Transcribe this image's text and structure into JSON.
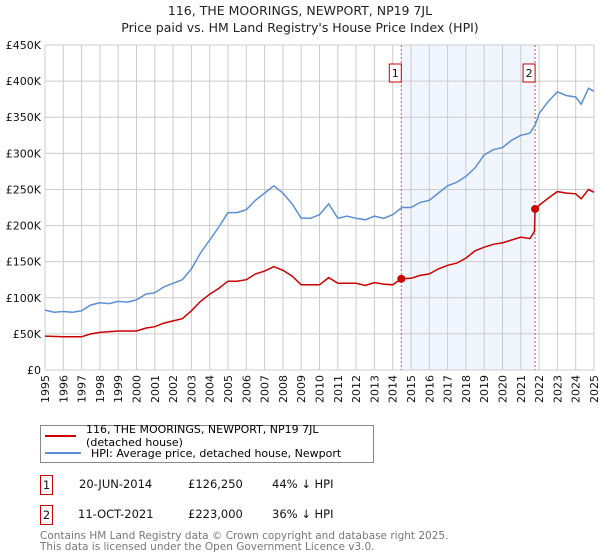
{
  "chart_data": {
    "type": "line",
    "title": "116, THE MOORINGS, NEWPORT, NP19 7JL",
    "subtitle": "Price paid vs. HM Land Registry's House Price Index (HPI)",
    "xlim": [
      1995,
      2025
    ],
    "ylim": [
      0,
      450000
    ],
    "x_ticks": [
      "1995",
      "1996",
      "1997",
      "1998",
      "1999",
      "2000",
      "2001",
      "2002",
      "2003",
      "2004",
      "2005",
      "2006",
      "2007",
      "2008",
      "2009",
      "2010",
      "2011",
      "2012",
      "2013",
      "2014",
      "2015",
      "2016",
      "2017",
      "2018",
      "2019",
      "2020",
      "2021",
      "2022",
      "2023",
      "2024",
      "2025"
    ],
    "y_ticks": [
      {
        "v": 0,
        "label": "£0"
      },
      {
        "v": 50000,
        "label": "£50K"
      },
      {
        "v": 100000,
        "label": "£100K"
      },
      {
        "v": 150000,
        "label": "£150K"
      },
      {
        "v": 200000,
        "label": "£200K"
      },
      {
        "v": 250000,
        "label": "£250K"
      },
      {
        "v": 300000,
        "label": "£300K"
      },
      {
        "v": 350000,
        "label": "£350K"
      },
      {
        "v": 400000,
        "label": "£400K"
      },
      {
        "v": 450000,
        "label": "£450K"
      }
    ],
    "grid": true,
    "shaded_range": [
      2014.47,
      2021.78
    ],
    "series": [
      {
        "name": "116, THE MOORINGS, NEWPORT, NP19 7JL (detached house)",
        "color": "#cc0000",
        "x": [
          1995,
          1996,
          1997,
          1997.5,
          1998,
          1999,
          2000,
          2000.5,
          2001,
          2001.5,
          2002,
          2002.5,
          2003,
          2003.5,
          2004,
          2004.5,
          2005,
          2005.5,
          2006,
          2006.5,
          2007,
          2007.5,
          2008,
          2008.5,
          2009,
          2009.5,
          2010,
          2010.5,
          2011,
          2011.5,
          2012,
          2012.5,
          2013,
          2013.5,
          2014,
          2014.47,
          2015,
          2015.5,
          2016,
          2016.5,
          2017,
          2017.5,
          2018,
          2018.5,
          2019,
          2019.5,
          2020,
          2020.5,
          2021,
          2021.5,
          2021.75,
          2021.78,
          2022,
          2022.5,
          2023,
          2023.5,
          2024,
          2024.3,
          2024.7,
          2025
        ],
        "y": [
          47000,
          46000,
          46000,
          50000,
          52000,
          54000,
          54000,
          58000,
          60000,
          65000,
          68000,
          71000,
          82000,
          95000,
          105000,
          113000,
          123000,
          123000,
          125000,
          133000,
          137000,
          143000,
          138000,
          130000,
          118000,
          118000,
          118000,
          128000,
          120000,
          120000,
          120000,
          117000,
          121000,
          119000,
          118000,
          126250,
          127000,
          131000,
          133000,
          140000,
          145000,
          148000,
          155000,
          165000,
          170000,
          174000,
          176000,
          180000,
          184000,
          182000,
          192000,
          223000,
          228000,
          238000,
          247000,
          245000,
          244000,
          237000,
          250000,
          246000
        ]
      },
      {
        "name": "HPI: Average price, detached house, Newport",
        "color": "#5b8fd4",
        "x": [
          1995,
          1995.5,
          1996,
          1996.5,
          1997,
          1997.5,
          1998,
          1998.5,
          1999,
          1999.5,
          2000,
          2000.5,
          2001,
          2001.5,
          2002,
          2002.5,
          2003,
          2003.5,
          2004,
          2004.5,
          2005,
          2005.5,
          2006,
          2006.5,
          2007,
          2007.5,
          2008,
          2008.5,
          2009,
          2009.5,
          2010,
          2010.5,
          2011,
          2011.5,
          2012,
          2012.5,
          2013,
          2013.5,
          2014,
          2014.5,
          2015,
          2015.5,
          2016,
          2016.5,
          2017,
          2017.5,
          2018,
          2018.5,
          2019,
          2019.5,
          2020,
          2020.5,
          2021,
          2021.5,
          2021.8,
          2022,
          2022.5,
          2023,
          2023.5,
          2024,
          2024.3,
          2024.7,
          2025
        ],
        "y": [
          83000,
          80000,
          81000,
          80000,
          82000,
          90000,
          93000,
          92000,
          95000,
          94000,
          97000,
          105000,
          107000,
          115000,
          120000,
          125000,
          140000,
          162000,
          180000,
          198000,
          218000,
          218000,
          222000,
          235000,
          245000,
          255000,
          245000,
          230000,
          210000,
          210000,
          215000,
          230000,
          210000,
          213000,
          210000,
          208000,
          213000,
          210000,
          215000,
          225000,
          225000,
          232000,
          235000,
          245000,
          255000,
          260000,
          268000,
          280000,
          298000,
          305000,
          308000,
          318000,
          325000,
          328000,
          340000,
          355000,
          372000,
          385000,
          380000,
          378000,
          368000,
          390000,
          386000
        ]
      }
    ],
    "markers": [
      {
        "label": "1",
        "x": 2014.47,
        "y": 126250
      },
      {
        "label": "2",
        "x": 2021.78,
        "y": 223000
      }
    ],
    "legend_placement": "below"
  },
  "transactions": [
    {
      "num": "1",
      "date": "20-JUN-2014",
      "price": "£126,250",
      "hpi": "44% ↓ HPI"
    },
    {
      "num": "2",
      "date": "11-OCT-2021",
      "price": "£223,000",
      "hpi": "36% ↓ HPI"
    }
  ],
  "footer": [
    "Contains HM Land Registry data © Crown copyright and database right 2025.",
    "This data is licensed under the Open Government Licence v3.0."
  ]
}
